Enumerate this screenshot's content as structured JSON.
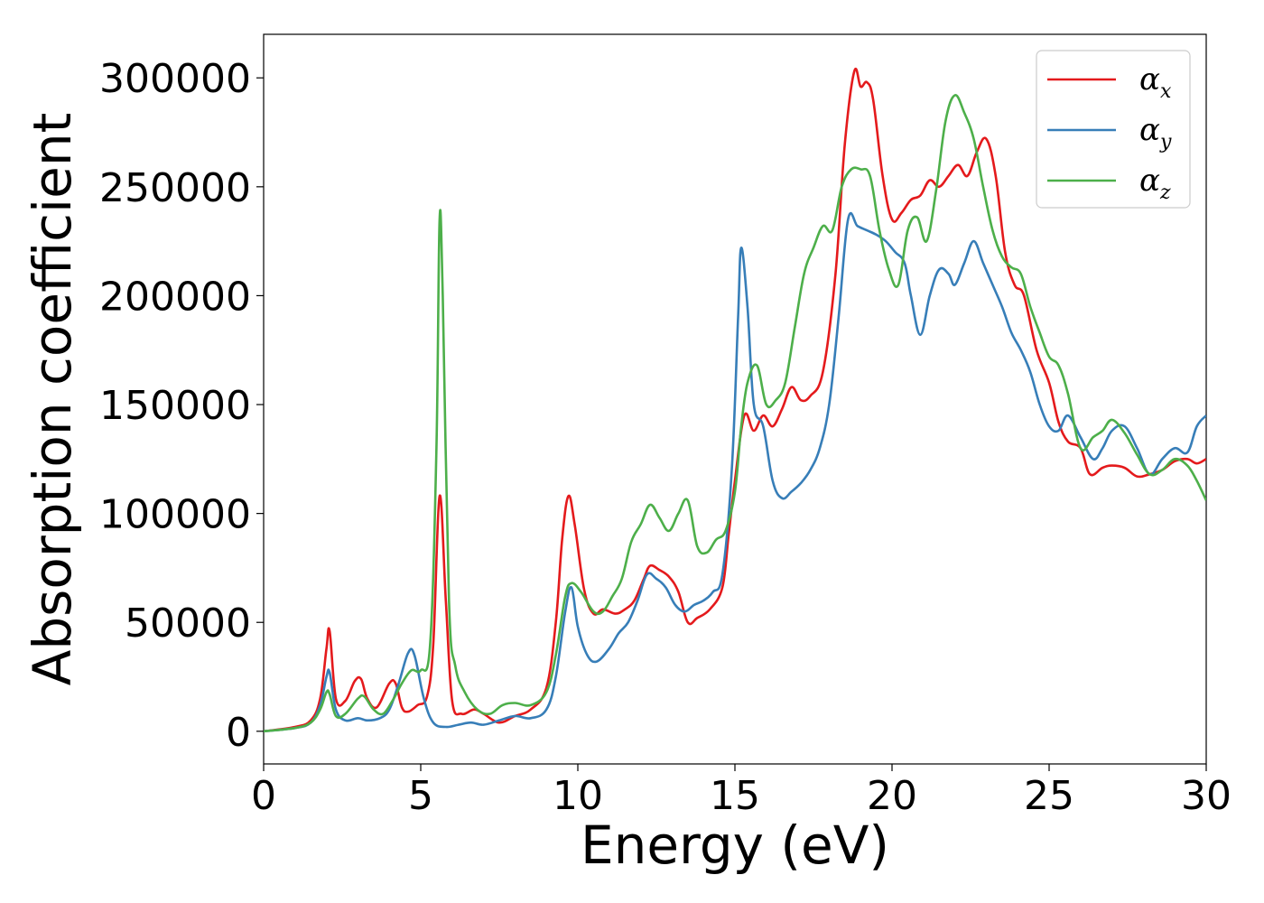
{
  "chart_data": {
    "type": "line",
    "xlabel": "Energy (eV)",
    "ylabel": "Absorption coefficient",
    "xlim": [
      0,
      30
    ],
    "ylim": [
      -15000,
      320000
    ],
    "xticks": [
      0,
      5,
      10,
      15,
      20,
      25,
      30
    ],
    "yticks": [
      0,
      50000,
      100000,
      150000,
      200000,
      250000,
      300000
    ],
    "grid": false,
    "legend_position": "top-right",
    "series": [
      {
        "name": "α_x",
        "label_main": "α",
        "label_sub": "x",
        "color": "#e41a1c",
        "x": [
          0,
          1,
          1.5,
          1.8,
          2.0,
          2.1,
          2.3,
          2.6,
          2.9,
          3.1,
          3.3,
          3.6,
          4.0,
          4.2,
          4.4,
          4.6,
          4.9,
          5.2,
          5.4,
          5.6,
          5.8,
          6.0,
          6.3,
          6.7,
          7.0,
          7.5,
          8.0,
          8.5,
          9.0,
          9.3,
          9.5,
          9.7,
          9.9,
          10.2,
          10.5,
          10.8,
          11.2,
          11.5,
          11.8,
          12.1,
          12.3,
          12.6,
          12.9,
          13.2,
          13.5,
          13.8,
          14.2,
          14.6,
          14.8,
          15.0,
          15.3,
          15.6,
          15.9,
          16.2,
          16.5,
          16.8,
          17.1,
          17.4,
          17.8,
          18.2,
          18.5,
          18.8,
          19.0,
          19.2,
          19.4,
          19.7,
          20.0,
          20.3,
          20.6,
          20.9,
          21.2,
          21.5,
          21.8,
          22.1,
          22.4,
          22.7,
          23.0,
          23.3,
          23.6,
          23.9,
          24.2,
          24.6,
          25.0,
          25.3,
          25.6,
          26.0,
          26.3,
          26.7,
          27.0,
          27.4,
          27.8,
          28.2,
          28.6,
          29.0,
          29.4,
          29.7,
          30.0
        ],
        "y": [
          0,
          2000,
          5000,
          15000,
          38000,
          46000,
          15000,
          14000,
          23000,
          24000,
          15000,
          11000,
          22000,
          22000,
          11000,
          9000,
          12000,
          16000,
          40000,
          108000,
          60000,
          14000,
          8000,
          10000,
          8000,
          4000,
          7000,
          10000,
          20000,
          50000,
          88000,
          108000,
          95000,
          65000,
          54000,
          56000,
          54000,
          56000,
          60000,
          70000,
          76000,
          74000,
          71000,
          64000,
          50000,
          52000,
          56000,
          66000,
          90000,
          115000,
          145000,
          138000,
          145000,
          140000,
          148000,
          158000,
          152000,
          154000,
          165000,
          210000,
          270000,
          303000,
          296000,
          298000,
          290000,
          255000,
          235000,
          238000,
          244000,
          246000,
          253000,
          250000,
          255000,
          260000,
          255000,
          266000,
          272000,
          255000,
          220000,
          205000,
          200000,
          175000,
          160000,
          142000,
          133000,
          130000,
          118000,
          121000,
          122000,
          121000,
          117000,
          118000,
          120000,
          124000,
          125000,
          123000,
          125000
        ]
      },
      {
        "name": "α_y",
        "label_main": "α",
        "label_sub": "y",
        "color": "#377eb8",
        "x": [
          0,
          1,
          1.5,
          1.8,
          2.0,
          2.1,
          2.3,
          2.6,
          3.0,
          3.3,
          3.7,
          4.0,
          4.3,
          4.6,
          4.8,
          5.1,
          5.4,
          5.8,
          6.2,
          6.6,
          7.0,
          7.5,
          8.0,
          8.5,
          9.0,
          9.3,
          9.6,
          9.8,
          10.0,
          10.3,
          10.6,
          11.0,
          11.3,
          11.6,
          11.9,
          12.2,
          12.5,
          12.8,
          13.1,
          13.4,
          13.7,
          14.0,
          14.3,
          14.6,
          14.9,
          15.1,
          15.2,
          15.4,
          15.6,
          15.9,
          16.2,
          16.5,
          16.8,
          17.1,
          17.4,
          17.7,
          18.0,
          18.3,
          18.6,
          18.9,
          19.2,
          19.5,
          19.8,
          20.1,
          20.4,
          20.6,
          20.9,
          21.2,
          21.5,
          21.8,
          22.0,
          22.3,
          22.6,
          22.9,
          23.2,
          23.5,
          23.8,
          24.1,
          24.4,
          24.7,
          25.0,
          25.3,
          25.6,
          26.0,
          26.4,
          26.7,
          27.0,
          27.4,
          27.8,
          28.2,
          28.6,
          29.0,
          29.4,
          29.7,
          30.0
        ],
        "y": [
          0,
          1500,
          4000,
          12000,
          25000,
          27000,
          10000,
          5000,
          6000,
          5000,
          6000,
          10000,
          22000,
          36000,
          35000,
          15000,
          4000,
          2000,
          3000,
          4000,
          3000,
          5000,
          7000,
          6000,
          10000,
          25000,
          55000,
          66000,
          48000,
          35000,
          32000,
          38000,
          45000,
          50000,
          60000,
          72000,
          70000,
          66000,
          58000,
          55000,
          58000,
          60000,
          64000,
          72000,
          120000,
          190000,
          222000,
          195000,
          150000,
          140000,
          115000,
          107000,
          110000,
          114000,
          120000,
          130000,
          150000,
          190000,
          235000,
          232000,
          230000,
          228000,
          225000,
          220000,
          215000,
          200000,
          182000,
          200000,
          212000,
          210000,
          205000,
          215000,
          225000,
          215000,
          205000,
          195000,
          183000,
          175000,
          165000,
          150000,
          140000,
          138000,
          145000,
          135000,
          125000,
          130000,
          138000,
          140000,
          130000,
          118000,
          125000,
          130000,
          128000,
          140000,
          145000
        ]
      },
      {
        "name": "α_z",
        "label_main": "α",
        "label_sub": "z",
        "color": "#4daf4a",
        "x": [
          0,
          1,
          1.5,
          1.8,
          2.0,
          2.1,
          2.3,
          2.6,
          3.0,
          3.2,
          3.5,
          3.8,
          4.1,
          4.4,
          4.7,
          5.0,
          5.3,
          5.5,
          5.6,
          5.7,
          5.9,
          6.1,
          6.4,
          6.8,
          7.2,
          7.6,
          8.0,
          8.5,
          9.0,
          9.3,
          9.6,
          9.8,
          10.1,
          10.5,
          10.8,
          11.1,
          11.4,
          11.7,
          12.0,
          12.3,
          12.6,
          12.9,
          13.2,
          13.5,
          13.8,
          14.1,
          14.4,
          14.7,
          15.0,
          15.2,
          15.4,
          15.7,
          16.0,
          16.3,
          16.6,
          16.9,
          17.2,
          17.5,
          17.8,
          18.1,
          18.4,
          18.7,
          19.0,
          19.3,
          19.6,
          19.9,
          20.2,
          20.5,
          20.8,
          21.1,
          21.4,
          21.7,
          22.0,
          22.3,
          22.6,
          22.9,
          23.2,
          23.5,
          23.8,
          24.1,
          24.4,
          24.7,
          25.0,
          25.3,
          25.6,
          26.0,
          26.4,
          26.7,
          27.0,
          27.4,
          27.8,
          28.2,
          28.6,
          29.0,
          29.4,
          29.7,
          30.0
        ],
        "y": [
          0,
          1500,
          4000,
          10000,
          18000,
          17000,
          7000,
          8000,
          15000,
          16000,
          10000,
          8000,
          14000,
          22000,
          28000,
          28000,
          40000,
          130000,
          235000,
          200000,
          60000,
          30000,
          18000,
          10000,
          8000,
          12000,
          13000,
          12000,
          18000,
          35000,
          62000,
          68000,
          64000,
          55000,
          55000,
          62000,
          70000,
          87000,
          95000,
          104000,
          98000,
          92000,
          100000,
          106000,
          85000,
          82000,
          88000,
          92000,
          110000,
          140000,
          160000,
          168000,
          150000,
          152000,
          160000,
          185000,
          210000,
          222000,
          232000,
          230000,
          250000,
          258000,
          258000,
          255000,
          230000,
          212000,
          205000,
          230000,
          236000,
          225000,
          248000,
          280000,
          292000,
          284000,
          272000,
          250000,
          230000,
          218000,
          213000,
          210000,
          195000,
          183000,
          172000,
          168000,
          155000,
          130000,
          135000,
          138000,
          143000,
          137000,
          127000,
          118000,
          120000,
          125000,
          122000,
          115000,
          106000
        ]
      }
    ]
  }
}
